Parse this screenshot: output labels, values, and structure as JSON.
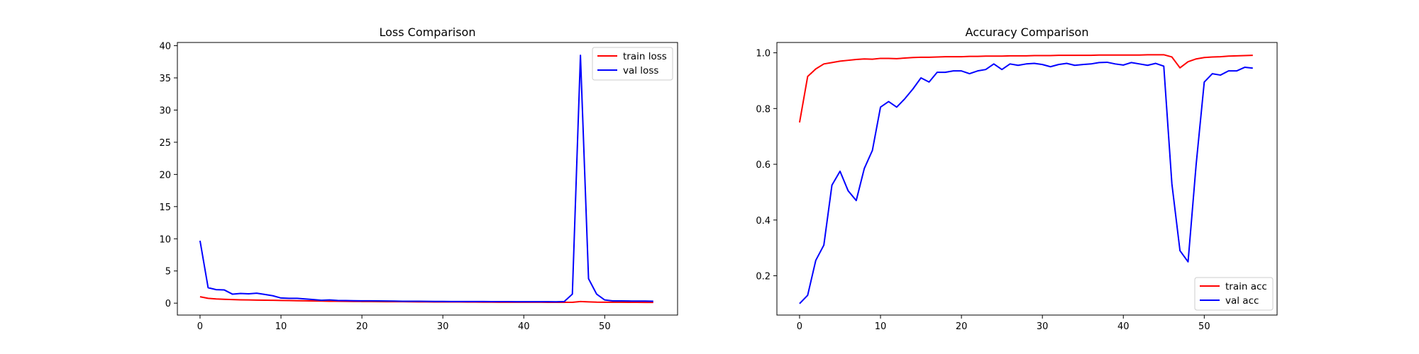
{
  "chart_data": [
    {
      "type": "line",
      "title": "Loss Comparison",
      "xlabel": "",
      "ylabel": "",
      "xlim": [
        -2.8,
        59.0
      ],
      "ylim": [
        -1.85,
        40.5
      ],
      "xticks": [
        0,
        10,
        20,
        30,
        40,
        50
      ],
      "yticks": [
        0,
        5,
        10,
        15,
        20,
        25,
        30,
        35,
        40
      ],
      "grid": false,
      "legend": "top-right",
      "x": [
        0,
        1,
        2,
        3,
        4,
        5,
        6,
        7,
        8,
        9,
        10,
        11,
        12,
        13,
        14,
        15,
        16,
        17,
        18,
        19,
        20,
        21,
        22,
        23,
        24,
        25,
        26,
        27,
        28,
        29,
        30,
        31,
        32,
        33,
        34,
        35,
        36,
        37,
        38,
        39,
        40,
        41,
        42,
        43,
        44,
        45,
        46,
        47,
        48,
        49,
        50,
        51,
        52,
        53,
        54,
        55,
        56
      ],
      "series": [
        {
          "name": "train loss",
          "color": "#ff0000",
          "values": [
            1.0,
            0.75,
            0.65,
            0.6,
            0.55,
            0.52,
            0.5,
            0.48,
            0.46,
            0.44,
            0.42,
            0.4,
            0.38,
            0.36,
            0.34,
            0.32,
            0.3,
            0.29,
            0.28,
            0.27,
            0.26,
            0.25,
            0.24,
            0.23,
            0.22,
            0.22,
            0.21,
            0.2,
            0.2,
            0.19,
            0.19,
            0.18,
            0.18,
            0.17,
            0.17,
            0.16,
            0.16,
            0.15,
            0.15,
            0.15,
            0.14,
            0.14,
            0.14,
            0.13,
            0.13,
            0.13,
            0.13,
            0.25,
            0.2,
            0.16,
            0.15,
            0.14,
            0.14,
            0.13,
            0.13,
            0.12,
            0.12
          ]
        },
        {
          "name": "val loss",
          "color": "#0000ff",
          "values": [
            9.7,
            2.4,
            2.1,
            2.05,
            1.4,
            1.5,
            1.45,
            1.55,
            1.35,
            1.15,
            0.8,
            0.75,
            0.75,
            0.65,
            0.55,
            0.45,
            0.5,
            0.42,
            0.4,
            0.38,
            0.36,
            0.37,
            0.35,
            0.33,
            0.32,
            0.3,
            0.3,
            0.29,
            0.28,
            0.27,
            0.27,
            0.26,
            0.26,
            0.25,
            0.25,
            0.25,
            0.24,
            0.24,
            0.24,
            0.23,
            0.23,
            0.22,
            0.22,
            0.22,
            0.21,
            0.25,
            1.4,
            38.5,
            3.8,
            1.4,
            0.5,
            0.35,
            0.35,
            0.33,
            0.32,
            0.32,
            0.3
          ]
        }
      ]
    },
    {
      "type": "line",
      "title": "Accuracy Comparison",
      "xlabel": "",
      "ylabel": "",
      "xlim": [
        -2.8,
        59.0
      ],
      "ylim": [
        0.059,
        1.037
      ],
      "xticks": [
        0,
        10,
        20,
        30,
        40,
        50
      ],
      "yticks": [
        0.2,
        0.4,
        0.6,
        0.8,
        1.0
      ],
      "ytick_labels": [
        "0.2",
        "0.4",
        "0.6",
        "0.8",
        "1.0"
      ],
      "grid": false,
      "legend": "bottom-right",
      "x": [
        0,
        1,
        2,
        3,
        4,
        5,
        6,
        7,
        8,
        9,
        10,
        11,
        12,
        13,
        14,
        15,
        16,
        17,
        18,
        19,
        20,
        21,
        22,
        23,
        24,
        25,
        26,
        27,
        28,
        29,
        30,
        31,
        32,
        33,
        34,
        35,
        36,
        37,
        38,
        39,
        40,
        41,
        42,
        43,
        44,
        45,
        46,
        47,
        48,
        49,
        50,
        51,
        52,
        53,
        54,
        55,
        56
      ],
      "series": [
        {
          "name": "train acc",
          "color": "#ff0000",
          "values": [
            0.75,
            0.915,
            0.942,
            0.96,
            0.965,
            0.97,
            0.973,
            0.976,
            0.978,
            0.977,
            0.98,
            0.98,
            0.979,
            0.981,
            0.983,
            0.984,
            0.984,
            0.985,
            0.986,
            0.986,
            0.986,
            0.987,
            0.987,
            0.988,
            0.988,
            0.988,
            0.989,
            0.989,
            0.989,
            0.99,
            0.99,
            0.99,
            0.991,
            0.991,
            0.991,
            0.991,
            0.991,
            0.992,
            0.992,
            0.992,
            0.992,
            0.992,
            0.992,
            0.993,
            0.993,
            0.993,
            0.985,
            0.946,
            0.968,
            0.978,
            0.983,
            0.985,
            0.986,
            0.988,
            0.989,
            0.99,
            0.991
          ]
        },
        {
          "name": "val acc",
          "color": "#0000ff",
          "values": [
            0.1,
            0.13,
            0.255,
            0.31,
            0.525,
            0.575,
            0.505,
            0.47,
            0.585,
            0.65,
            0.805,
            0.825,
            0.805,
            0.835,
            0.87,
            0.91,
            0.895,
            0.93,
            0.93,
            0.935,
            0.935,
            0.925,
            0.935,
            0.94,
            0.96,
            0.94,
            0.96,
            0.955,
            0.96,
            0.962,
            0.958,
            0.95,
            0.958,
            0.962,
            0.955,
            0.958,
            0.96,
            0.965,
            0.966,
            0.96,
            0.956,
            0.965,
            0.96,
            0.955,
            0.962,
            0.952,
            0.53,
            0.29,
            0.25,
            0.6,
            0.895,
            0.925,
            0.92,
            0.935,
            0.935,
            0.948,
            0.945
          ]
        }
      ]
    }
  ]
}
